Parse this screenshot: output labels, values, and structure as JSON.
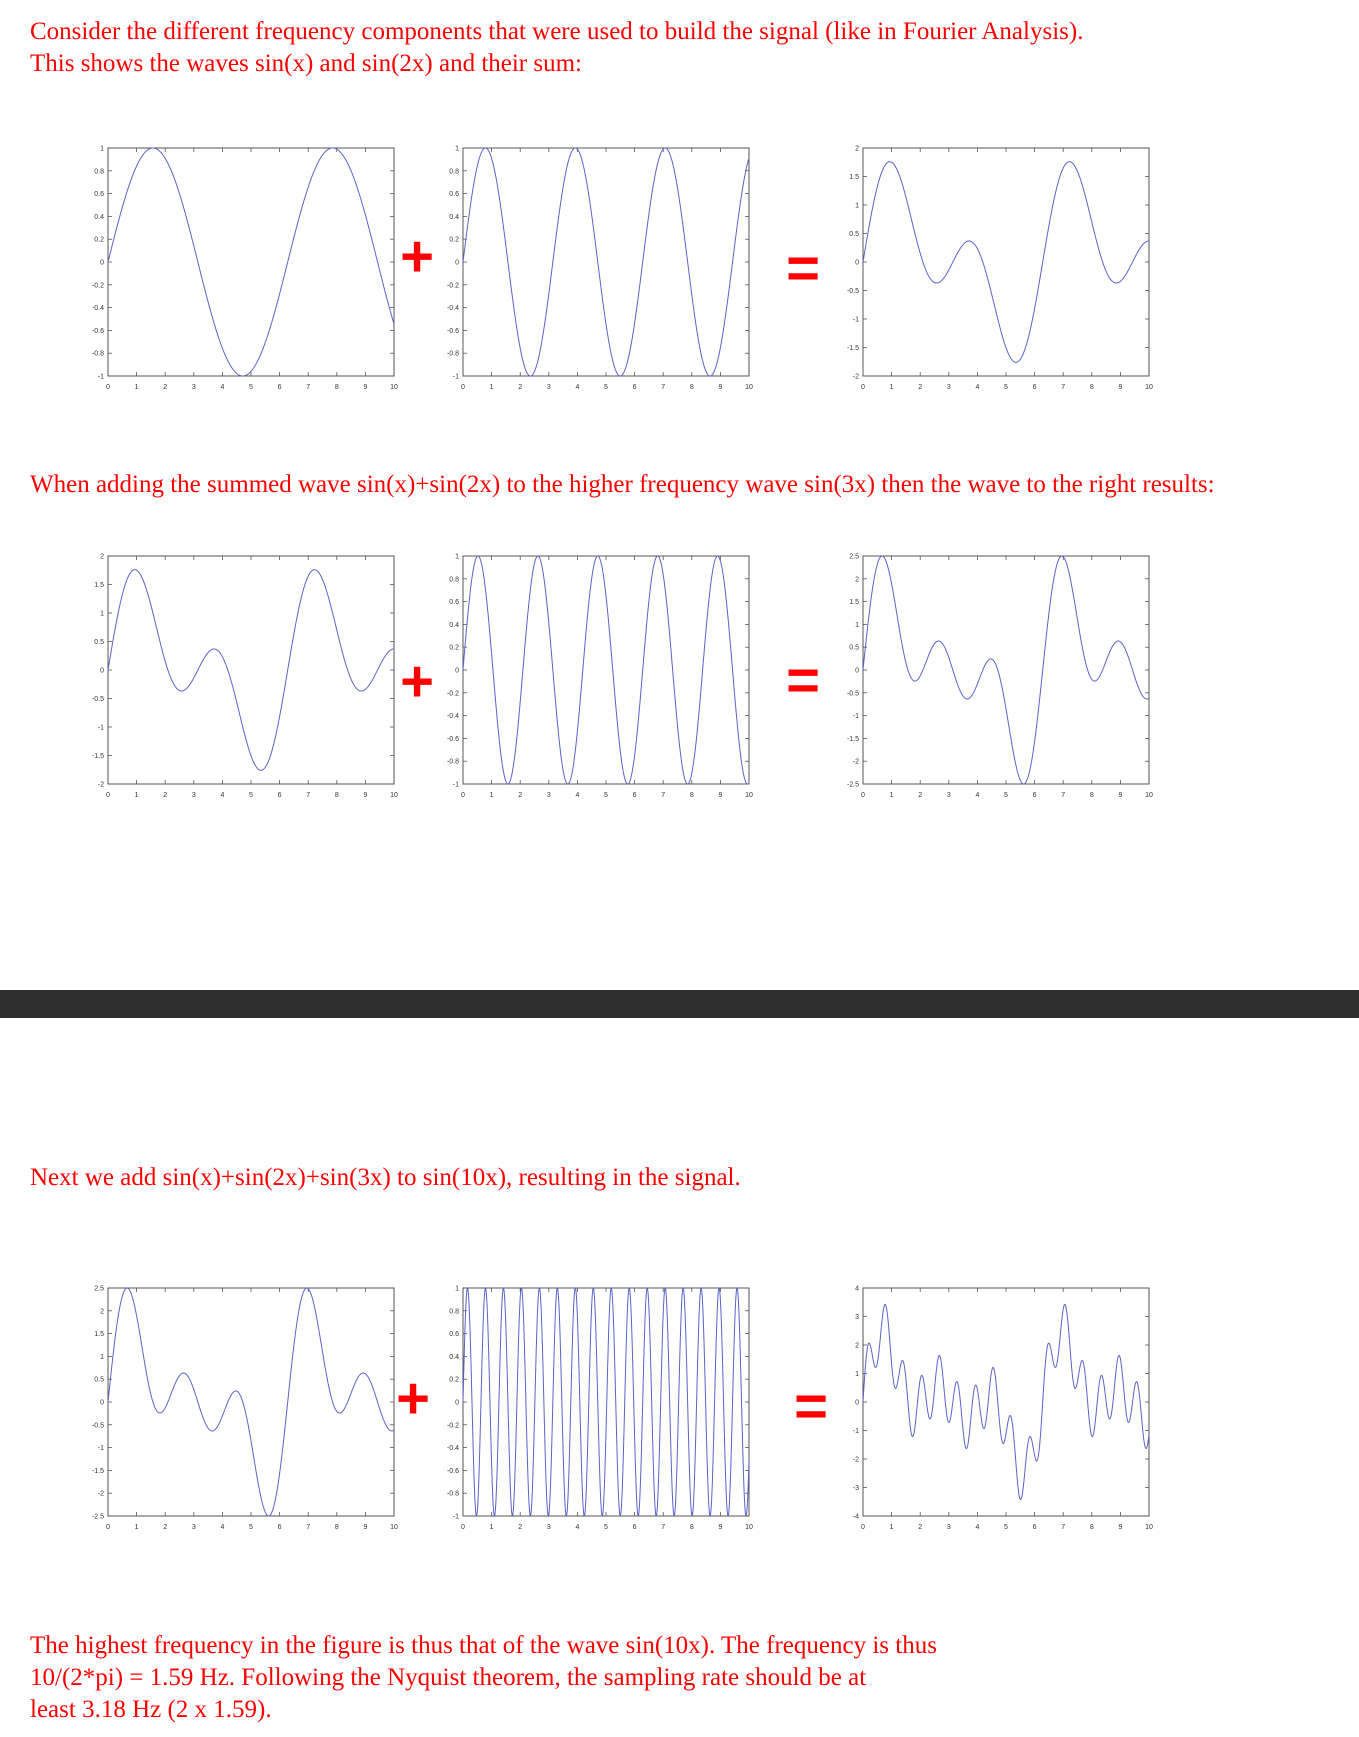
{
  "text": {
    "intro_lines": [
      "Consider the different frequency components that were used to build the signal (like in Fourier Analysis).",
      "This shows the waves sin(x) and sin(2x) and their sum:"
    ],
    "second_line": "When adding the summed wave sin(x)+sin(2x) to the higher frequency wave sin(3x) then the wave to the right results:",
    "third_line": "Next we add sin(x)+sin(2x)+sin(3x) to sin(10x), resulting in the signal.",
    "conclusion_lines": [
      "The highest frequency in the figure is thus that of the wave sin(10x). The frequency is thus",
      "10/(2*pi) = 1.59 Hz. Following the Nyquist theorem, the sampling rate should be at",
      "least 3.18 Hz (2 x 1.59)."
    ]
  },
  "operators": {
    "plus": "+",
    "equals": "="
  },
  "colors": {
    "text": "#ff0000",
    "curve": "#5b63c9",
    "separator": "#2f2f2f"
  },
  "chart_data": [
    {
      "type": "line",
      "id": "r1-sinx",
      "freqs": [
        1
      ],
      "xlim": [
        0,
        10
      ],
      "ylim": [
        -1,
        1
      ],
      "xticks": [
        "0",
        "1",
        "2",
        "3",
        "4",
        "5",
        "6",
        "7",
        "8",
        "9",
        "10"
      ],
      "yticks": [
        "1",
        "0.8",
        "0.6",
        "0.4",
        "0.2",
        "0",
        "-0.2",
        "-0.4",
        "-0.6",
        "-0.8",
        "-1"
      ]
    },
    {
      "type": "line",
      "id": "r1-sin2x",
      "freqs": [
        2
      ],
      "xlim": [
        0,
        10
      ],
      "ylim": [
        -1,
        1
      ],
      "xticks": [
        "0",
        "1",
        "2",
        "3",
        "4",
        "5",
        "6",
        "7",
        "8",
        "9",
        "10"
      ],
      "yticks": [
        "1",
        "0.8",
        "0.6",
        "0.4",
        "0.2",
        "0",
        "-0.2",
        "-0.4",
        "-0.6",
        "-0.8",
        "-1"
      ]
    },
    {
      "type": "line",
      "id": "r1-sum",
      "freqs": [
        1,
        2
      ],
      "xlim": [
        0,
        10
      ],
      "ylim": [
        -2,
        2
      ],
      "xticks": [
        "0",
        "1",
        "2",
        "3",
        "4",
        "5",
        "6",
        "7",
        "8",
        "9",
        "10"
      ],
      "yticks": [
        "2",
        "1.5",
        "1",
        "0.5",
        "0",
        "-0.5",
        "-1",
        "-1.5",
        "-2"
      ]
    },
    {
      "type": "line",
      "id": "r2-sum12",
      "freqs": [
        1,
        2
      ],
      "xlim": [
        0,
        10
      ],
      "ylim": [
        -2,
        2
      ],
      "xticks": [
        "0",
        "1",
        "2",
        "3",
        "4",
        "5",
        "6",
        "7",
        "8",
        "9",
        "10"
      ],
      "yticks": [
        "2",
        "1.5",
        "1",
        "0.5",
        "0",
        "-0.5",
        "-1",
        "-1.5",
        "-2"
      ]
    },
    {
      "type": "line",
      "id": "r2-sin3x",
      "freqs": [
        3
      ],
      "xlim": [
        0,
        10
      ],
      "ylim": [
        -1,
        1
      ],
      "xticks": [
        "0",
        "1",
        "2",
        "3",
        "4",
        "5",
        "6",
        "7",
        "8",
        "9",
        "10"
      ],
      "yticks": [
        "1",
        "0.8",
        "0.6",
        "0.4",
        "0.2",
        "0",
        "-0.2",
        "-0.4",
        "-0.6",
        "-0.8",
        "-1"
      ]
    },
    {
      "type": "line",
      "id": "r2-sum123",
      "freqs": [
        1,
        2,
        3
      ],
      "xlim": [
        0,
        10
      ],
      "ylim": [
        -2.5,
        2.5
      ],
      "xticks": [
        "0",
        "1",
        "2",
        "3",
        "4",
        "5",
        "6",
        "7",
        "8",
        "9",
        "10"
      ],
      "yticks": [
        "2.5",
        "2",
        "1.5",
        "1",
        "0.5",
        "0",
        "-0.5",
        "-1",
        "-1.5",
        "-2",
        "-2.5"
      ]
    },
    {
      "type": "line",
      "id": "r3-sum123",
      "freqs": [
        1,
        2,
        3
      ],
      "xlim": [
        0,
        10
      ],
      "ylim": [
        -2.5,
        2.5
      ],
      "xticks": [
        "0",
        "1",
        "2",
        "3",
        "4",
        "5",
        "6",
        "7",
        "8",
        "9",
        "10"
      ],
      "yticks": [
        "2.5",
        "2",
        "1.5",
        "1",
        "0.5",
        "0",
        "-0.5",
        "-1",
        "-1.5",
        "-2",
        "-2.5"
      ]
    },
    {
      "type": "line",
      "id": "r3-sin10x",
      "freqs": [
        10
      ],
      "xlim": [
        0,
        10
      ],
      "ylim": [
        -1,
        1
      ],
      "xticks": [
        "0",
        "1",
        "2",
        "3",
        "4",
        "5",
        "6",
        "7",
        "8",
        "9",
        "10"
      ],
      "yticks": [
        "1",
        "0.8",
        "0.6",
        "0.4",
        "0.2",
        "0",
        "-0.2",
        "-0.4",
        "-0.6",
        "-0.8",
        "-1"
      ]
    },
    {
      "type": "line",
      "id": "r3-sum12310",
      "freqs": [
        1,
        2,
        3,
        10
      ],
      "xlim": [
        0,
        10
      ],
      "ylim": [
        -4,
        4
      ],
      "xticks": [
        "0",
        "1",
        "2",
        "3",
        "4",
        "5",
        "6",
        "7",
        "8",
        "9",
        "10"
      ],
      "yticks": [
        "4",
        "3",
        "2",
        "1",
        "0",
        "-1",
        "-2",
        "-3",
        "-4"
      ]
    }
  ]
}
